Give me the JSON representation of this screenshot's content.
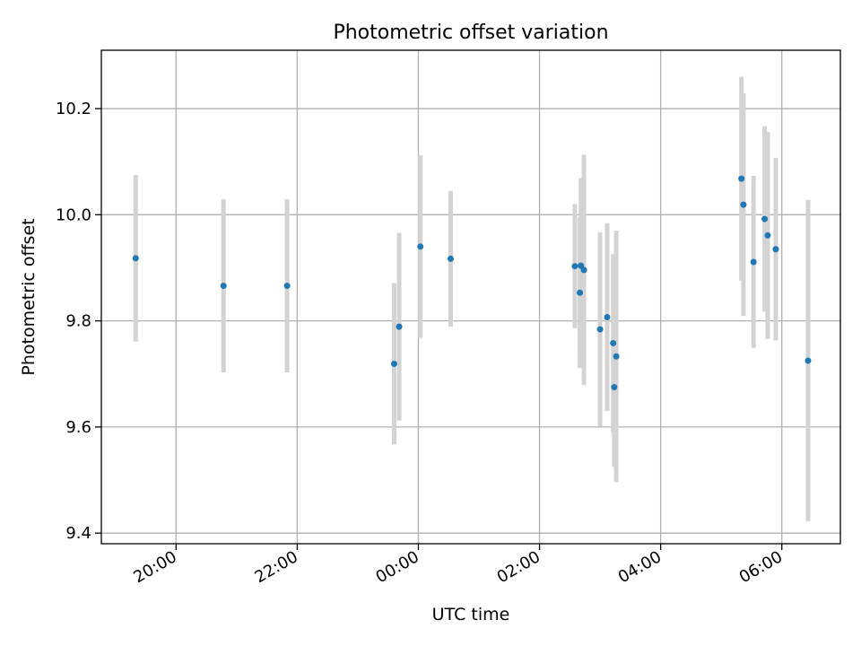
{
  "chart_data": {
    "type": "scatter",
    "title": "Photometric offset variation",
    "xlabel": "UTC time",
    "ylabel": "Photometric offset",
    "x_axis_type": "datetime",
    "grid": true,
    "xlim": [
      "2020-01-01T18:46",
      "2020-01-02T06:58"
    ],
    "ylim": [
      9.38,
      10.31
    ],
    "x_ticks": [
      {
        "t": "2020-01-01T20:00",
        "label": "20:00"
      },
      {
        "t": "2020-01-01T22:00",
        "label": "22:00"
      },
      {
        "t": "2020-01-02T00:00",
        "label": "00:00"
      },
      {
        "t": "2020-01-02T02:00",
        "label": "02:00"
      },
      {
        "t": "2020-01-02T04:00",
        "label": "04:00"
      },
      {
        "t": "2020-01-02T06:00",
        "label": "06:00"
      }
    ],
    "y_ticks": [
      {
        "v": 9.4,
        "label": "9.4"
      },
      {
        "v": 9.6,
        "label": "9.6"
      },
      {
        "v": 9.8,
        "label": "9.8"
      },
      {
        "v": 10.0,
        "label": "10.0"
      },
      {
        "v": 10.2,
        "label": "10.2"
      }
    ],
    "marker_color": "#1f77b4",
    "errorbar_color": "#d3d3d3",
    "points": [
      {
        "t": "2020-01-01T19:20",
        "y": 9.918,
        "err": 0.157
      },
      {
        "t": "2020-01-01T20:47",
        "y": 9.866,
        "err": 0.163
      },
      {
        "t": "2020-01-01T21:50",
        "y": 9.866,
        "err": 0.163
      },
      {
        "t": "2020-01-01T23:36",
        "y": 9.719,
        "err": 0.152
      },
      {
        "t": "2020-01-01T23:41",
        "y": 9.789,
        "err": 0.177
      },
      {
        "t": "2020-01-02T00:02",
        "y": 9.94,
        "err": 0.172
      },
      {
        "t": "2020-01-02T00:32",
        "y": 9.917,
        "err": 0.128
      },
      {
        "t": "2020-01-02T02:35",
        "y": 9.903,
        "err": 0.117
      },
      {
        "t": "2020-01-02T02:40",
        "y": 9.853,
        "err": 0.142
      },
      {
        "t": "2020-01-02T02:41",
        "y": 9.904,
        "err": 0.165
      },
      {
        "t": "2020-01-02T02:44",
        "y": 9.896,
        "err": 0.217
      },
      {
        "t": "2020-01-02T03:00",
        "y": 9.784,
        "err": 0.183
      },
      {
        "t": "2020-01-02T03:07",
        "y": 9.807,
        "err": 0.177
      },
      {
        "t": "2020-01-02T03:13",
        "y": 9.758,
        "err": 0.168
      },
      {
        "t": "2020-01-02T03:14",
        "y": 9.675,
        "err": 0.15
      },
      {
        "t": "2020-01-02T03:16",
        "y": 9.733,
        "err": 0.237
      },
      {
        "t": "2020-01-02T05:20",
        "y": 10.068,
        "err": 0.192
      },
      {
        "t": "2020-01-02T05:22",
        "y": 10.019,
        "err": 0.21
      },
      {
        "t": "2020-01-02T05:32",
        "y": 9.911,
        "err": 0.162
      },
      {
        "t": "2020-01-02T05:43",
        "y": 9.992,
        "err": 0.175
      },
      {
        "t": "2020-01-02T05:46",
        "y": 9.961,
        "err": 0.195
      },
      {
        "t": "2020-01-02T05:54",
        "y": 9.935,
        "err": 0.172
      },
      {
        "t": "2020-01-02T06:26",
        "y": 9.725,
        "err": 0.303
      }
    ]
  }
}
